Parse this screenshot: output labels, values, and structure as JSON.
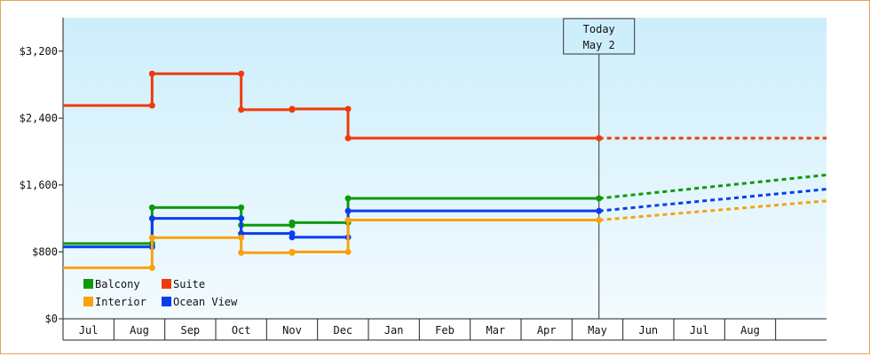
{
  "chart_data": {
    "type": "line",
    "step": true,
    "ylim": [
      0,
      3600
    ],
    "y_ticks": [
      0,
      800,
      1600,
      2400,
      3200
    ],
    "y_tick_labels": [
      "$0",
      "$800",
      "$1,600",
      "$2,400",
      "$3,200"
    ],
    "x_tick_labels": [
      "Jul",
      "Aug",
      "Sep",
      "Oct",
      "Nov",
      "Dec",
      "Jan",
      "Feb",
      "Mar",
      "Apr",
      "May",
      "Jun",
      "Jul",
      "Aug"
    ],
    "xlim_months": [
      -0.5,
      14.5
    ],
    "today": {
      "line1": "Today",
      "line2": "May 2",
      "x_month": 10.03
    },
    "grid": false,
    "legend_position": "bottom-left",
    "background_gradient": [
      "#cdeefb",
      "#f3fbfe"
    ],
    "series": [
      {
        "name": "Suite",
        "color": "#ee3b0b",
        "points": [
          [
            -0.5,
            2550
          ],
          [
            1.25,
            2550
          ],
          [
            1.25,
            2930
          ],
          [
            3.0,
            2930
          ],
          [
            3.0,
            2500
          ],
          [
            4.0,
            2500
          ],
          [
            4.0,
            2510
          ],
          [
            5.1,
            2510
          ],
          [
            5.1,
            2160
          ],
          [
            10.03,
            2160
          ]
        ],
        "projection": [
          [
            10.03,
            2160
          ],
          [
            14.5,
            2160
          ]
        ]
      },
      {
        "name": "Balcony",
        "color": "#0c9a0c",
        "points": [
          [
            -0.5,
            900
          ],
          [
            1.25,
            900
          ],
          [
            1.25,
            1330
          ],
          [
            3.0,
            1330
          ],
          [
            3.0,
            1120
          ],
          [
            4.0,
            1120
          ],
          [
            4.0,
            1150
          ],
          [
            5.1,
            1150
          ],
          [
            5.1,
            1440
          ],
          [
            10.03,
            1440
          ]
        ],
        "projection": [
          [
            10.03,
            1440
          ],
          [
            14.5,
            1720
          ]
        ]
      },
      {
        "name": "Ocean View",
        "color": "#0a3cf0",
        "points": [
          [
            -0.5,
            860
          ],
          [
            1.25,
            860
          ],
          [
            1.25,
            1200
          ],
          [
            3.0,
            1200
          ],
          [
            3.0,
            1020
          ],
          [
            4.0,
            1020
          ],
          [
            4.0,
            975
          ],
          [
            5.1,
            975
          ],
          [
            5.1,
            1290
          ],
          [
            10.03,
            1290
          ]
        ],
        "projection": [
          [
            10.03,
            1290
          ],
          [
            14.5,
            1550
          ]
        ]
      },
      {
        "name": "Interior",
        "color": "#f8a20c",
        "points": [
          [
            -0.5,
            610
          ],
          [
            1.25,
            610
          ],
          [
            1.25,
            970
          ],
          [
            3.0,
            970
          ],
          [
            3.0,
            790
          ],
          [
            4.0,
            790
          ],
          [
            4.0,
            800
          ],
          [
            5.1,
            800
          ],
          [
            5.1,
            1180
          ],
          [
            10.03,
            1180
          ]
        ],
        "projection": [
          [
            10.03,
            1180
          ],
          [
            14.5,
            1410
          ]
        ]
      }
    ],
    "legend_rows": [
      [
        "Balcony",
        "Suite"
      ],
      [
        "Interior",
        "Ocean View"
      ]
    ]
  }
}
